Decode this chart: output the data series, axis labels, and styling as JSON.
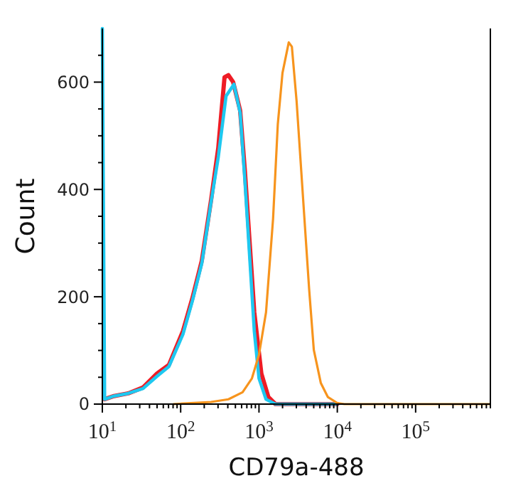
{
  "chart_data": {
    "type": "line",
    "xlabel": "CD79a-488",
    "ylabel": "Count",
    "log": "x",
    "xlim": [
      10,
      900000
    ],
    "ylim": [
      0,
      700
    ],
    "xticks": [
      {
        "value": 10,
        "label": "10$^{1}$"
      },
      {
        "value": 20,
        "label": null
      },
      {
        "value": 30,
        "label": null
      },
      {
        "value": 40,
        "label": null
      },
      {
        "value": 50,
        "label": null
      },
      {
        "value": 60,
        "label": null
      },
      {
        "value": 70,
        "label": null
      },
      {
        "value": 80,
        "label": null
      },
      {
        "value": 90,
        "label": null
      },
      {
        "value": 100,
        "label": "10$^{2}$"
      },
      {
        "value": 200,
        "label": null
      },
      {
        "value": 300,
        "label": null
      },
      {
        "value": 400,
        "label": null
      },
      {
        "value": 500,
        "label": null
      },
      {
        "value": 600,
        "label": null
      },
      {
        "value": 700,
        "label": null
      },
      {
        "value": 800,
        "label": null
      },
      {
        "value": 900,
        "label": null
      },
      {
        "value": 1000,
        "label": "10$^{3}$"
      },
      {
        "value": 2000,
        "label": null
      },
      {
        "value": 3000,
        "label": null
      },
      {
        "value": 4000,
        "label": null
      },
      {
        "value": 5000,
        "label": null
      },
      {
        "value": 6000,
        "label": null
      },
      {
        "value": 7000,
        "label": null
      },
      {
        "value": 8000,
        "label": null
      },
      {
        "value": 9000,
        "label": null
      },
      {
        "value": 10000,
        "label": "10$^{4}$"
      },
      {
        "value": 20000,
        "label": null
      },
      {
        "value": 30000,
        "label": null
      },
      {
        "value": 40000,
        "label": null
      },
      {
        "value": 50000,
        "label": null
      },
      {
        "value": 60000,
        "label": null
      },
      {
        "value": 70000,
        "label": null
      },
      {
        "value": 80000,
        "label": null
      },
      {
        "value": 90000,
        "label": null
      },
      {
        "value": 100000,
        "label": "10$^{5}$"
      },
      {
        "value": 200000,
        "label": null
      },
      {
        "value": 300000,
        "label": null
      },
      {
        "value": 400000,
        "label": null
      },
      {
        "value": 500000,
        "label": null
      },
      {
        "value": 600000,
        "label": null
      },
      {
        "value": 700000,
        "label": null
      },
      {
        "value": 800000,
        "label": null
      },
      {
        "value": 900000,
        "label": null
      }
    ],
    "yticks": [
      0,
      {
        "value": 50,
        "label": null
      },
      {
        "value": 100,
        "label": null
      },
      {
        "value": 150,
        "label": null
      },
      200,
      {
        "value": 250,
        "label": null
      },
      {
        "value": 300,
        "label": null
      },
      {
        "value": 350,
        "label": null
      },
      400,
      {
        "value": 450,
        "label": null
      },
      {
        "value": 500,
        "label": null
      },
      {
        "value": 550,
        "label": null
      },
      600,
      {
        "value": 650,
        "label": null
      }
    ],
    "grid": false,
    "line_style": "solid",
    "series": [
      {
        "color": "#ee1c25",
        "x": [
          10.7,
          14.1,
          21.4,
          33.1,
          50.1,
          70.8,
          107,
          141,
          186,
          245,
          302,
          363,
          407,
          468,
          575,
          661,
          759,
          871,
          1072,
          1318,
          1622,
          10000
        ],
        "values": [
          9,
          15,
          20,
          31,
          57,
          73,
          136,
          197,
          267,
          381,
          477,
          609,
          613,
          600,
          547,
          434,
          302,
          171,
          57,
          13,
          0,
          0
        ]
      },
      {
        "color": "#1ec8f0",
        "x": [
          10,
          10.7,
          14.1,
          21.4,
          33.1,
          50.1,
          70.8,
          107,
          141,
          186,
          245,
          302,
          380,
          479,
          575,
          661,
          759,
          871,
          1000,
          1230,
          1622,
          10000
        ],
        "values": [
          700,
          9,
          15,
          20,
          29,
          52,
          70,
          130,
          192,
          262,
          377,
          460,
          574,
          596,
          543,
          416,
          276,
          136,
          48,
          9,
          0,
          0
        ]
      },
      {
        "color": "#f7941d",
        "x": [
          81,
          245,
          407,
          617,
          813,
          1000,
          1230,
          1514,
          1738,
          1995,
          2399,
          2630,
          3020,
          3802,
          4365,
          5012,
          6166,
          7586,
          10000,
          12300,
          871000
        ],
        "values": [
          0,
          4,
          9,
          22,
          48,
          92,
          171,
          346,
          521,
          617,
          674,
          666,
          565,
          346,
          215,
          101,
          39,
          13,
          2,
          0,
          0
        ]
      }
    ]
  }
}
